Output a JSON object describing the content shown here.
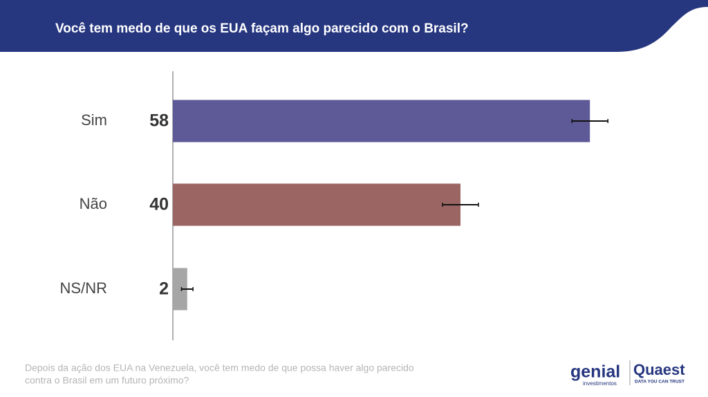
{
  "chart_data": {
    "type": "bar",
    "orientation": "horizontal",
    "title": "Você tem medo de que os EUA façam algo parecido com o Brasil?",
    "categories": [
      "Sim",
      "Não",
      "NS/NR"
    ],
    "values": [
      58,
      40,
      2
    ],
    "errors": [
      2.5,
      2.5,
      0.8
    ],
    "colors": [
      "#5e5a98",
      "#9a6562",
      "#a6a6a6"
    ],
    "footnote": [
      "Depois da ação dos EUA na Venezuela, você tem medo de que possa haver algo parecido",
      "contra o Brasil em um futuro próximo?"
    ]
  },
  "logos": {
    "genial": "genial",
    "genial_sub": "investimentos",
    "quaest": "Quaest",
    "quaest_sub": "DATA YOU CAN TRUST"
  }
}
